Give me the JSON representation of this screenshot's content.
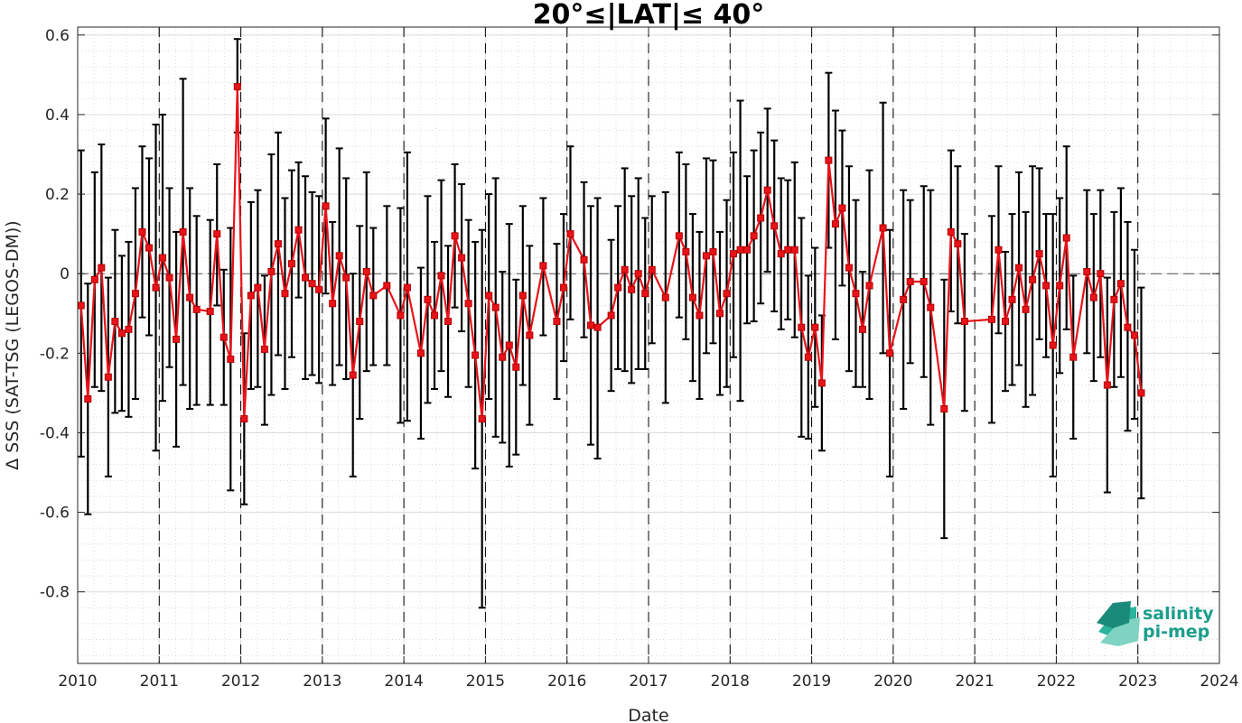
{
  "chart_data": {
    "type": "line",
    "title": "20°≤|LAT|≤ 40°",
    "xlabel": "Date",
    "ylabel": "Δ SSS (SAT-TSG (LEGOS-DM))",
    "xlim": [
      2010,
      2024
    ],
    "ylim": [
      -0.98,
      0.62
    ],
    "xticks": [
      "2010",
      "2011",
      "2012",
      "2013",
      "2014",
      "2015",
      "2016",
      "2017",
      "2018",
      "2019",
      "2020",
      "2021",
      "2022",
      "2023",
      "2024"
    ],
    "yticks": [
      "0.6",
      "0.4",
      "0.2",
      "0",
      "-0.2",
      "-0.4",
      "-0.6",
      "-0.8"
    ],
    "grid": true,
    "minor_grid": true,
    "year_dividers": "dashed vertical lines at each year",
    "zero_line": "dashed horizontal line at 0",
    "colors": {
      "series": "#e8131a",
      "errorbars": "#000000",
      "logo": "#1a9e8c"
    },
    "series": [
      {
        "marker": "square",
        "points": [
          {
            "x": "2010-01",
            "y": -0.08,
            "lo": -0.46,
            "hi": 0.31
          },
          {
            "x": "2010-02",
            "y": -0.315,
            "lo": -0.605,
            "hi": -0.025
          },
          {
            "x": "2010-03",
            "y": -0.015,
            "lo": -0.285,
            "hi": 0.255
          },
          {
            "x": "2010-04",
            "y": 0.015,
            "lo": -0.295,
            "hi": 0.325
          },
          {
            "x": "2010-05",
            "y": -0.26,
            "lo": -0.51,
            "hi": -0.01
          },
          {
            "x": "2010-06",
            "y": -0.12,
            "lo": -0.35,
            "hi": 0.11
          },
          {
            "x": "2010-07",
            "y": -0.15,
            "lo": -0.345,
            "hi": 0.045
          },
          {
            "x": "2010-08",
            "y": -0.14,
            "lo": -0.36,
            "hi": 0.08
          },
          {
            "x": "2010-09",
            "y": -0.05,
            "lo": -0.315,
            "hi": 0.215
          },
          {
            "x": "2010-10",
            "y": 0.105,
            "lo": -0.11,
            "hi": 0.32
          },
          {
            "x": "2010-11",
            "y": 0.065,
            "lo": -0.155,
            "hi": 0.29
          },
          {
            "x": "2010-12",
            "y": -0.035,
            "lo": -0.445,
            "hi": 0.375
          },
          {
            "x": "2011-01",
            "y": 0.04,
            "lo": -0.32,
            "hi": 0.4
          },
          {
            "x": "2011-02",
            "y": -0.01,
            "lo": -0.235,
            "hi": 0.215
          },
          {
            "x": "2011-03",
            "y": -0.165,
            "lo": -0.435,
            "hi": 0.105
          },
          {
            "x": "2011-04",
            "y": 0.105,
            "lo": -0.28,
            "hi": 0.49
          },
          {
            "x": "2011-05",
            "y": -0.06,
            "lo": -0.34,
            "hi": 0.215
          },
          {
            "x": "2011-06",
            "y": -0.09,
            "lo": -0.33,
            "hi": 0.145
          },
          {
            "x": "2011-08",
            "y": -0.095,
            "lo": -0.33,
            "hi": 0.135
          },
          {
            "x": "2011-09",
            "y": 0.1,
            "lo": -0.08,
            "hi": 0.275
          },
          {
            "x": "2011-10",
            "y": -0.16,
            "lo": -0.33,
            "hi": 0.01
          },
          {
            "x": "2011-11",
            "y": -0.215,
            "lo": -0.545,
            "hi": 0.115
          },
          {
            "x": "2011-12",
            "y": 0.47,
            "lo": 0.355,
            "hi": 0.59
          },
          {
            "x": "2012-01",
            "y": -0.365,
            "lo": -0.58,
            "hi": -0.15
          },
          {
            "x": "2012-02",
            "y": -0.055,
            "lo": -0.29,
            "hi": 0.18
          },
          {
            "x": "2012-03",
            "y": -0.035,
            "lo": -0.285,
            "hi": 0.21
          },
          {
            "x": "2012-04",
            "y": -0.19,
            "lo": -0.38,
            "hi": -0.005
          },
          {
            "x": "2012-05",
            "y": 0.005,
            "lo": -0.305,
            "hi": 0.3
          },
          {
            "x": "2012-06",
            "y": 0.075,
            "lo": -0.205,
            "hi": 0.355
          },
          {
            "x": "2012-07",
            "y": -0.05,
            "lo": -0.29,
            "hi": 0.19
          },
          {
            "x": "2012-08",
            "y": 0.025,
            "lo": -0.21,
            "hi": 0.26
          },
          {
            "x": "2012-09",
            "y": 0.11,
            "lo": -0.06,
            "hi": 0.28
          },
          {
            "x": "2012-10",
            "y": -0.01,
            "lo": -0.265,
            "hi": 0.245
          },
          {
            "x": "2012-11",
            "y": -0.025,
            "lo": -0.255,
            "hi": 0.205
          },
          {
            "x": "2012-12",
            "y": -0.04,
            "lo": -0.275,
            "hi": 0.195
          },
          {
            "x": "2013-01",
            "y": 0.17,
            "lo": -0.05,
            "hi": 0.39
          },
          {
            "x": "2013-02",
            "y": -0.075,
            "lo": -0.28,
            "hi": 0.13
          },
          {
            "x": "2013-03",
            "y": 0.045,
            "lo": -0.23,
            "hi": 0.315
          },
          {
            "x": "2013-04",
            "y": -0.01,
            "lo": -0.265,
            "hi": 0.24
          },
          {
            "x": "2013-05",
            "y": -0.255,
            "lo": -0.51,
            "hi": 0.0
          },
          {
            "x": "2013-06",
            "y": -0.12,
            "lo": -0.365,
            "hi": 0.12
          },
          {
            "x": "2013-07",
            "y": 0.005,
            "lo": -0.245,
            "hi": 0.255
          },
          {
            "x": "2013-08",
            "y": -0.055,
            "lo": -0.23,
            "hi": 0.115
          },
          {
            "x": "2013-10",
            "y": -0.03,
            "lo": -0.23,
            "hi": 0.17
          },
          {
            "x": "2013-12",
            "y": -0.105,
            "lo": -0.375,
            "hi": 0.165
          },
          {
            "x": "2014-01",
            "y": -0.035,
            "lo": -0.37,
            "hi": 0.305
          },
          {
            "x": "2014-03",
            "y": -0.2,
            "lo": -0.415,
            "hi": 0.015
          },
          {
            "x": "2014-04",
            "y": -0.065,
            "lo": -0.325,
            "hi": 0.195
          },
          {
            "x": "2014-05",
            "y": -0.105,
            "lo": -0.29,
            "hi": 0.08
          },
          {
            "x": "2014-06",
            "y": -0.005,
            "lo": -0.245,
            "hi": 0.235
          },
          {
            "x": "2014-07",
            "y": -0.12,
            "lo": -0.31,
            "hi": 0.07
          },
          {
            "x": "2014-08",
            "y": 0.095,
            "lo": -0.085,
            "hi": 0.275
          },
          {
            "x": "2014-09",
            "y": 0.04,
            "lo": -0.145,
            "hi": 0.225
          },
          {
            "x": "2014-10",
            "y": -0.075,
            "lo": -0.285,
            "hi": 0.135
          },
          {
            "x": "2014-11",
            "y": -0.205,
            "lo": -0.49,
            "hi": 0.08
          },
          {
            "x": "2014-12",
            "y": -0.365,
            "lo": -0.84,
            "hi": 0.11
          },
          {
            "x": "2015-01",
            "y": -0.055,
            "lo": -0.315,
            "hi": 0.2
          },
          {
            "x": "2015-02",
            "y": -0.085,
            "lo": -0.41,
            "hi": 0.24
          },
          {
            "x": "2015-03",
            "y": -0.21,
            "lo": -0.425,
            "hi": 0.005
          },
          {
            "x": "2015-04",
            "y": -0.18,
            "lo": -0.485,
            "hi": 0.125
          },
          {
            "x": "2015-05",
            "y": -0.235,
            "lo": -0.455,
            "hi": -0.015
          },
          {
            "x": "2015-06",
            "y": -0.055,
            "lo": -0.28,
            "hi": 0.17
          },
          {
            "x": "2015-07",
            "y": -0.155,
            "lo": -0.38,
            "hi": 0.07
          },
          {
            "x": "2015-09",
            "y": 0.02,
            "lo": -0.155,
            "hi": 0.19
          },
          {
            "x": "2015-11",
            "y": -0.12,
            "lo": -0.315,
            "hi": 0.075
          },
          {
            "x": "2015-12",
            "y": -0.035,
            "lo": -0.22,
            "hi": 0.15
          },
          {
            "x": "2016-01",
            "y": 0.1,
            "lo": -0.115,
            "hi": 0.32
          },
          {
            "x": "2016-03",
            "y": 0.035,
            "lo": -0.16,
            "hi": 0.23
          },
          {
            "x": "2016-04",
            "y": -0.13,
            "lo": -0.43,
            "hi": 0.17
          },
          {
            "x": "2016-05",
            "y": -0.135,
            "lo": -0.465,
            "hi": 0.19
          },
          {
            "x": "2016-07",
            "y": -0.105,
            "lo": -0.295,
            "hi": 0.085
          },
          {
            "x": "2016-08",
            "y": -0.035,
            "lo": -0.24,
            "hi": 0.17
          },
          {
            "x": "2016-09",
            "y": 0.01,
            "lo": -0.245,
            "hi": 0.265
          },
          {
            "x": "2016-10",
            "y": -0.04,
            "lo": -0.275,
            "hi": 0.195
          },
          {
            "x": "2016-11",
            "y": 0.0,
            "lo": -0.24,
            "hi": 0.24
          },
          {
            "x": "2016-12",
            "y": -0.05,
            "lo": -0.24,
            "hi": 0.14
          },
          {
            "x": "2017-01",
            "y": 0.01,
            "lo": -0.175,
            "hi": 0.195
          },
          {
            "x": "2017-03",
            "y": -0.06,
            "lo": -0.325,
            "hi": 0.205
          },
          {
            "x": "2017-05",
            "y": 0.095,
            "lo": -0.11,
            "hi": 0.305
          },
          {
            "x": "2017-06",
            "y": 0.055,
            "lo": -0.165,
            "hi": 0.275
          },
          {
            "x": "2017-07",
            "y": -0.06,
            "lo": -0.27,
            "hi": 0.15
          },
          {
            "x": "2017-08",
            "y": -0.105,
            "lo": -0.315,
            "hi": 0.105
          },
          {
            "x": "2017-09",
            "y": 0.045,
            "lo": -0.2,
            "hi": 0.29
          },
          {
            "x": "2017-10",
            "y": 0.055,
            "lo": -0.175,
            "hi": 0.285
          },
          {
            "x": "2017-11",
            "y": -0.1,
            "lo": -0.305,
            "hi": 0.105
          },
          {
            "x": "2017-12",
            "y": -0.05,
            "lo": -0.285,
            "hi": 0.185
          },
          {
            "x": "2018-01",
            "y": 0.05,
            "lo": -0.21,
            "hi": 0.305
          },
          {
            "x": "2018-02",
            "y": 0.06,
            "lo": -0.32,
            "hi": 0.435
          },
          {
            "x": "2018-03",
            "y": 0.06,
            "lo": -0.125,
            "hi": 0.245
          },
          {
            "x": "2018-04",
            "y": 0.095,
            "lo": -0.12,
            "hi": 0.31
          },
          {
            "x": "2018-05",
            "y": 0.14,
            "lo": -0.075,
            "hi": 0.355
          },
          {
            "x": "2018-06",
            "y": 0.21,
            "lo": 0.005,
            "hi": 0.415
          },
          {
            "x": "2018-07",
            "y": 0.12,
            "lo": -0.095,
            "hi": 0.335
          },
          {
            "x": "2018-08",
            "y": 0.05,
            "lo": -0.14,
            "hi": 0.24
          },
          {
            "x": "2018-09",
            "y": 0.06,
            "lo": -0.115,
            "hi": 0.235
          },
          {
            "x": "2018-10",
            "y": 0.06,
            "lo": -0.16,
            "hi": 0.28
          },
          {
            "x": "2018-11",
            "y": -0.135,
            "lo": -0.41,
            "hi": 0.14
          },
          {
            "x": "2018-12",
            "y": -0.21,
            "lo": -0.415,
            "hi": -0.005
          },
          {
            "x": "2019-01",
            "y": -0.135,
            "lo": -0.335,
            "hi": 0.065
          },
          {
            "x": "2019-02",
            "y": -0.275,
            "lo": -0.445,
            "hi": -0.105
          },
          {
            "x": "2019-03",
            "y": 0.285,
            "lo": 0.065,
            "hi": 0.505
          },
          {
            "x": "2019-04",
            "y": 0.125,
            "lo": -0.165,
            "hi": 0.41
          },
          {
            "x": "2019-05",
            "y": 0.165,
            "lo": -0.03,
            "hi": 0.36
          },
          {
            "x": "2019-06",
            "y": 0.015,
            "lo": -0.245,
            "hi": 0.27
          },
          {
            "x": "2019-07",
            "y": -0.05,
            "lo": -0.285,
            "hi": 0.185
          },
          {
            "x": "2019-08",
            "y": -0.14,
            "lo": -0.285,
            "hi": 0.005
          },
          {
            "x": "2019-09",
            "y": -0.03,
            "lo": -0.315,
            "hi": 0.26
          },
          {
            "x": "2019-11",
            "y": 0.115,
            "lo": -0.2,
            "hi": 0.43
          },
          {
            "x": "2019-12",
            "y": -0.2,
            "lo": -0.51,
            "hi": 0.11
          },
          {
            "x": "2020-02",
            "y": -0.065,
            "lo": -0.34,
            "hi": 0.21
          },
          {
            "x": "2020-03",
            "y": -0.02,
            "lo": -0.225,
            "hi": 0.185
          },
          {
            "x": "2020-05",
            "y": -0.02,
            "lo": -0.26,
            "hi": 0.22
          },
          {
            "x": "2020-06",
            "y": -0.085,
            "lo": -0.38,
            "hi": 0.21
          },
          {
            "x": "2020-08",
            "y": -0.34,
            "lo": -0.665,
            "hi": -0.015
          },
          {
            "x": "2020-09",
            "y": 0.105,
            "lo": -0.095,
            "hi": 0.31
          },
          {
            "x": "2020-10",
            "y": 0.075,
            "lo": -0.125,
            "hi": 0.27
          },
          {
            "x": "2020-11",
            "y": -0.12,
            "lo": -0.345,
            "hi": 0.1
          },
          {
            "x": "2021-03",
            "y": -0.115,
            "lo": -0.375,
            "hi": 0.145
          },
          {
            "x": "2021-04",
            "y": 0.06,
            "lo": -0.15,
            "hi": 0.27
          },
          {
            "x": "2021-05",
            "y": -0.12,
            "lo": -0.295,
            "hi": 0.055
          },
          {
            "x": "2021-06",
            "y": -0.065,
            "lo": -0.28,
            "hi": 0.15
          },
          {
            "x": "2021-07",
            "y": 0.015,
            "lo": -0.23,
            "hi": 0.255
          },
          {
            "x": "2021-08",
            "y": -0.09,
            "lo": -0.335,
            "hi": 0.155
          },
          {
            "x": "2021-09",
            "y": -0.015,
            "lo": -0.305,
            "hi": 0.27
          },
          {
            "x": "2021-10",
            "y": 0.05,
            "lo": -0.165,
            "hi": 0.265
          },
          {
            "x": "2021-11",
            "y": -0.03,
            "lo": -0.21,
            "hi": 0.15
          },
          {
            "x": "2021-12",
            "y": -0.18,
            "lo": -0.51,
            "hi": 0.15
          },
          {
            "x": "2022-01",
            "y": -0.03,
            "lo": -0.25,
            "hi": 0.19
          },
          {
            "x": "2022-02",
            "y": 0.09,
            "lo": -0.14,
            "hi": 0.32
          },
          {
            "x": "2022-03",
            "y": -0.21,
            "lo": -0.415,
            "hi": -0.005
          },
          {
            "x": "2022-05",
            "y": 0.005,
            "lo": -0.2,
            "hi": 0.21
          },
          {
            "x": "2022-06",
            "y": -0.06,
            "lo": -0.27,
            "hi": 0.15
          },
          {
            "x": "2022-07",
            "y": 0.0,
            "lo": -0.21,
            "hi": 0.21
          },
          {
            "x": "2022-08",
            "y": -0.28,
            "lo": -0.55,
            "hi": -0.01
          },
          {
            "x": "2022-09",
            "y": -0.065,
            "lo": -0.285,
            "hi": 0.155
          },
          {
            "x": "2022-10",
            "y": -0.025,
            "lo": -0.26,
            "hi": 0.215
          },
          {
            "x": "2022-11",
            "y": -0.135,
            "lo": -0.395,
            "hi": 0.13
          },
          {
            "x": "2022-12",
            "y": -0.155,
            "lo": -0.365,
            "hi": 0.06
          },
          {
            "x": "2023-01",
            "y": -0.3,
            "lo": -0.565,
            "hi": -0.035
          }
        ]
      }
    ]
  },
  "logo": {
    "line1": "salinity",
    "line2": "pi-mep"
  }
}
